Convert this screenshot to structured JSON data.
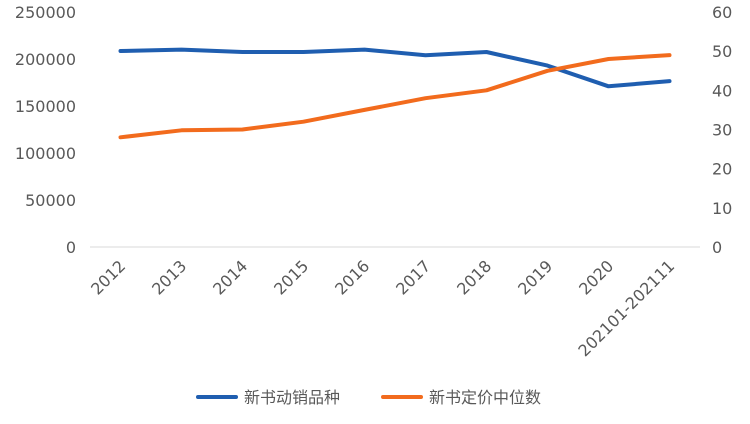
{
  "chart_data": {
    "type": "line",
    "categories": [
      "2012",
      "2013",
      "2014",
      "2015",
      "2016",
      "2017",
      "2018",
      "2019",
      "2020",
      "202101-202111"
    ],
    "series": [
      {
        "name": "新书动销品种",
        "axis": "left",
        "color": "#1F5EB0",
        "values": [
          208500,
          210000,
          207500,
          207500,
          210000,
          204000,
          207500,
          193000,
          171000,
          176500
        ]
      },
      {
        "name": "新书定价中位数",
        "axis": "right",
        "color": "#F26B1D",
        "values": [
          28,
          29.8,
          30,
          32,
          35,
          38,
          40,
          45,
          48,
          49
        ]
      }
    ],
    "y_left": {
      "ylim": [
        0,
        250000
      ],
      "ticks": [
        "0",
        "50000",
        "100000",
        "150000",
        "200000",
        "250000"
      ],
      "tick_values": [
        0,
        50000,
        100000,
        150000,
        200000,
        250000
      ]
    },
    "y_right": {
      "ylim": [
        0,
        60
      ],
      "ticks": [
        "0",
        "10",
        "20",
        "30",
        "40",
        "50",
        "60"
      ],
      "tick_values": [
        0,
        10,
        20,
        30,
        40,
        50,
        60
      ]
    },
    "legend_position": "bottom-center",
    "grid": false
  }
}
